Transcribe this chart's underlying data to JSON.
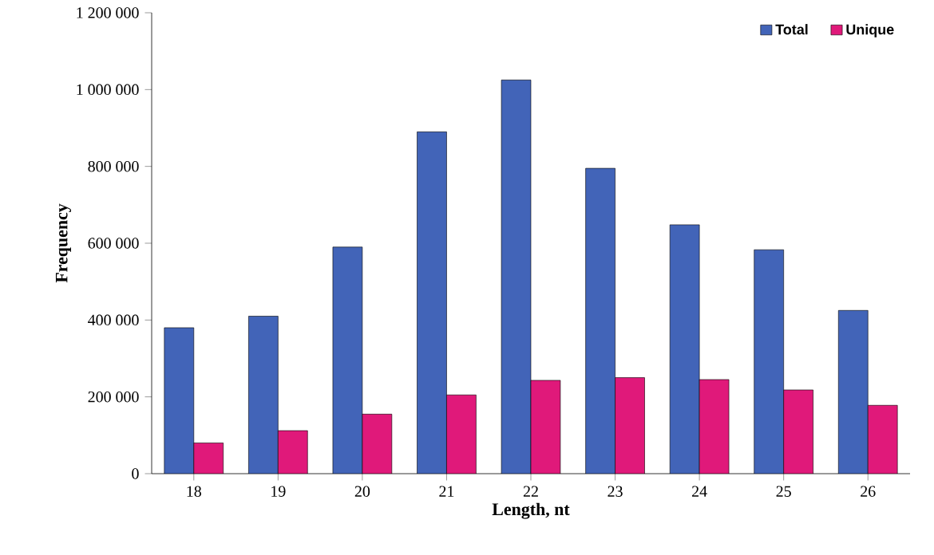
{
  "chart_data": {
    "type": "bar",
    "xlabel": "Length, nt",
    "ylabel": "Frequency",
    "categories": [
      "18",
      "19",
      "20",
      "21",
      "22",
      "23",
      "24",
      "25",
      "26"
    ],
    "series": [
      {
        "name": "Total",
        "color": "#4264b8",
        "values": [
          380000,
          410000,
          590000,
          890000,
          1025000,
          795000,
          648000,
          583000,
          425000
        ]
      },
      {
        "name": "Unique",
        "color": "#e0197a",
        "values": [
          80000,
          112000,
          155000,
          205000,
          243000,
          250000,
          245000,
          218000,
          178000
        ]
      }
    ],
    "ylim": [
      0,
      1200000
    ],
    "yticks": [
      0,
      {
        "value": 200000,
        "label": "200 000"
      },
      {
        "value": 400000,
        "label": "400 000"
      },
      {
        "value": 600000,
        "label": "600 000"
      },
      {
        "value": 800000,
        "label": "800 000"
      },
      {
        "value": 1000000,
        "label": "1 000 000"
      },
      {
        "value": 1200000,
        "label": "1 200 000"
      }
    ],
    "legend": "top right",
    "grid": false
  }
}
